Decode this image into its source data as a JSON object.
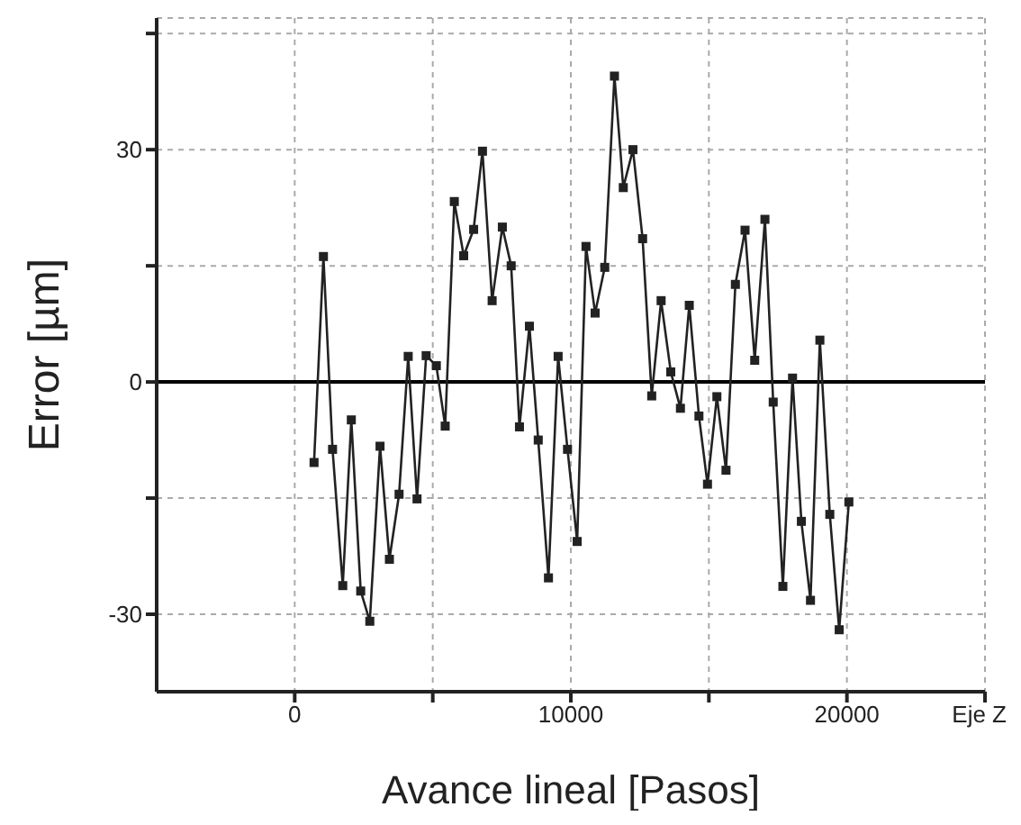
{
  "chart_data": {
    "type": "line",
    "xlabel": "Avance lineal [Pasos]",
    "ylabel": "Error [µm]",
    "annotations": [
      "Eje Z"
    ],
    "x": [
      700,
      1040,
      1370,
      1740,
      2050,
      2390,
      2720,
      3090,
      3430,
      3780,
      4110,
      4430,
      4760,
      5130,
      5450,
      5780,
      6120,
      6480,
      6800,
      7150,
      7520,
      7840,
      8140,
      8500,
      8820,
      9190,
      9540,
      9880,
      10230,
      10550,
      10880,
      11230,
      11580,
      11900,
      12250,
      12600,
      12930,
      13270,
      13620,
      13970,
      14290,
      14640,
      14950,
      15290,
      15620,
      15960,
      16310,
      16660,
      17030,
      17330,
      17680,
      18030,
      18350,
      18680,
      19020,
      19380,
      19720,
      20070
    ],
    "series": [
      {
        "color": "#222222",
        "values": [
          -10.4,
          16.2,
          -8.7,
          -26.3,
          -4.9,
          -27,
          -30.9,
          -8.3,
          -22.9,
          -14.5,
          3.3,
          -15.1,
          3.4,
          2.1,
          -5.7,
          23.3,
          16.3,
          19.7,
          29.8,
          10.5,
          20,
          15,
          -5.8,
          7.2,
          -7.5,
          -25.3,
          3.3,
          -8.7,
          -20.6,
          17.5,
          8.9,
          14.8,
          39.5,
          25.1,
          30,
          18.5,
          -1.8,
          10.5,
          1.3,
          -3.4,
          9.9,
          -4.4,
          -13.2,
          -1.9,
          -11.4,
          12.6,
          19.6,
          2.8,
          21,
          -2.6,
          -26.4,
          0.5,
          -18,
          -28.2,
          5.4,
          -17.1,
          -32,
          -15.5
        ]
      }
    ],
    "xlim": [
      -5000,
      25000
    ],
    "xticks": [
      0,
      {
        "value": 5000,
        "label": null
      },
      10000,
      {
        "value": 15000,
        "label": null
      },
      20000,
      {
        "value": 25000,
        "label": null
      }
    ],
    "ylim": [
      -40,
      47
    ],
    "yticks": [
      -30,
      {
        "value": -15,
        "label": null
      },
      0,
      {
        "value": 15,
        "label": null
      },
      30,
      {
        "value": 45,
        "label": null
      }
    ],
    "ref_lines": [
      {
        "axis": "y",
        "value": 0,
        "color": "#000000"
      }
    ],
    "grid": true,
    "legend": false,
    "marker": "square",
    "line_style": "solid"
  }
}
